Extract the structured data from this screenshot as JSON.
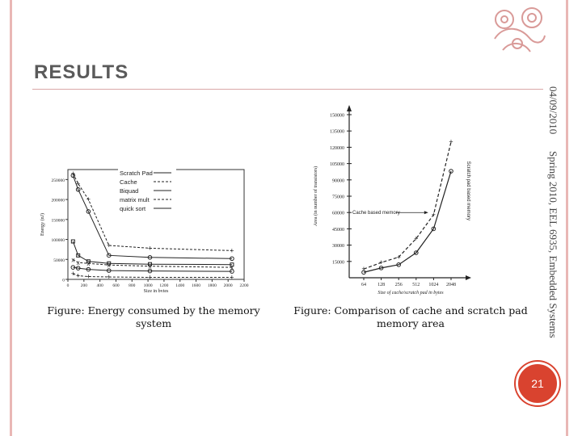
{
  "slide": {
    "title": "RESULTS",
    "date": "04/09/2010",
    "course": "Spring 2010, EEL 6935, Embedded Systems",
    "page_number": "21",
    "caption_left": "Figure: Energy consumed by the memory system",
    "caption_right": "Figure: Comparison of cache and scratch pad memory area",
    "ornament_icon": "decorative-floral-icon",
    "accent_color": "#d9432f"
  },
  "chart_data": [
    {
      "type": "line",
      "title": "",
      "xlabel": "Size in bytes",
      "ylabel": "Energy (nJ)",
      "xlim": [
        0,
        2200
      ],
      "ylim": [
        0,
        275000
      ],
      "x_ticks": [
        "0",
        "200",
        "400",
        "600",
        "800",
        "1000",
        "1200",
        "1400",
        "1600",
        "1800",
        "2000",
        "2200"
      ],
      "y_ticks": [
        "0",
        "50000",
        "100000",
        "150000",
        "200000",
        "250000"
      ],
      "legend_position": "top-right",
      "legend": [
        "Scratch Pad",
        "Cache",
        "Biquad",
        "matrix mult",
        "quick sort"
      ],
      "series": [
        {
          "line_style": "solid",
          "x": [
            64,
            128,
            256,
            512,
            1024,
            2048
          ],
          "y": [
            260000,
            225000,
            170000,
            60000,
            55000,
            52000
          ]
        },
        {
          "line_style": "dashed",
          "x": [
            64,
            128,
            256,
            512,
            1024,
            2048
          ],
          "y": [
            265000,
            240000,
            200000,
            85000,
            78000,
            72000
          ]
        },
        {
          "line_style": "solid",
          "x": [
            64,
            128,
            256,
            512,
            1024,
            2048
          ],
          "y": [
            95000,
            60000,
            45000,
            40000,
            38000,
            37000
          ]
        },
        {
          "line_style": "dashed",
          "x": [
            64,
            128,
            256,
            512,
            1024,
            2048
          ],
          "y": [
            50000,
            42000,
            40000,
            36000,
            33000,
            30000
          ]
        },
        {
          "line_style": "solid",
          "x": [
            64,
            128,
            256,
            512,
            1024,
            2048
          ],
          "y": [
            30000,
            28000,
            25000,
            22000,
            21000,
            20000
          ]
        },
        {
          "line_style": "dashed",
          "x": [
            64,
            128,
            256,
            512,
            1024,
            2048
          ],
          "y": [
            14000,
            9000,
            7000,
            6000,
            5000,
            5000
          ]
        }
      ]
    },
    {
      "type": "line",
      "title": "",
      "xlabel": "Size of cache/scratch pad in bytes",
      "ylabel": "Area (in number of transistors)",
      "categories": [
        "64",
        "128",
        "256",
        "512",
        "1024",
        "2048"
      ],
      "ylim": [
        0,
        150000
      ],
      "y_ticks": [
        "15000",
        "30000",
        "45000",
        "60000",
        "75000",
        "90000",
        "105000",
        "120000",
        "135000",
        "150000"
      ],
      "annotations": [
        "Cache based memory",
        "Scratch pad based memory"
      ],
      "series": [
        {
          "name": "Cache based memory",
          "line_style": "dashed",
          "values": [
            8000,
            14000,
            19000,
            36000,
            58000,
            125000
          ]
        },
        {
          "name": "Scratch pad based memory",
          "line_style": "solid",
          "values": [
            5000,
            9000,
            12000,
            23000,
            45000,
            98000
          ]
        }
      ]
    }
  ]
}
